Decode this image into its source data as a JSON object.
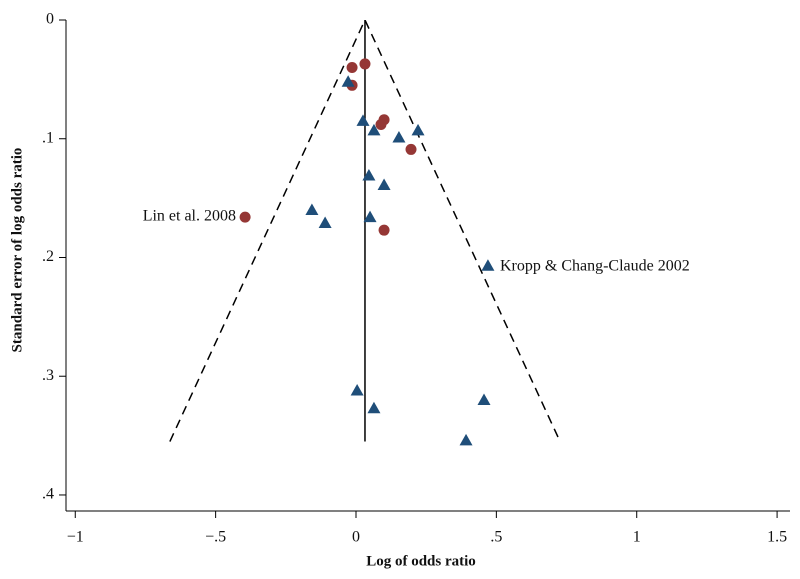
{
  "chart_data": {
    "type": "scatter",
    "xlabel": "Log of odds ratio",
    "ylabel": "Standard error of log odds ratio",
    "xlim": [
      -1.033,
      1.546
    ],
    "ylim": [
      0,
      0.4135
    ],
    "y_inverted": true,
    "xticks": [
      {
        "value": -1,
        "label": "−1"
      },
      {
        "value": -0.5,
        "label": "−.5"
      },
      0,
      {
        "value": 0.5,
        "label": ".5"
      },
      1,
      {
        "value": 1.5,
        "label": "1.5"
      }
    ],
    "yticks": [
      0,
      {
        "value": 0.1,
        "label": ".1"
      },
      {
        "value": 0.2,
        "label": ".2"
      },
      {
        "value": 0.3,
        "label": ".3"
      },
      {
        "value": 0.4,
        "label": ".4"
      }
    ],
    "series": [
      {
        "marker": "circle",
        "color": "#953735",
        "x": [
          -0.014,
          0.032,
          -0.014,
          0.1,
          0.089,
          0.196,
          -0.395,
          0.1
        ],
        "values": [
          0.04,
          0.037,
          0.055,
          0.084,
          0.088,
          0.109,
          0.166,
          0.177
        ]
      },
      {
        "marker": "triangle",
        "color": "#1f4e79",
        "x": [
          -0.028,
          0.025,
          0.064,
          0.221,
          0.153,
          0.046,
          0.1,
          -0.157,
          -0.11,
          0.05,
          0.47,
          0.004,
          0.064,
          0.456,
          0.392
        ],
        "values": [
          0.052,
          0.085,
          0.093,
          0.093,
          0.099,
          0.131,
          0.139,
          0.16,
          0.171,
          0.166,
          0.207,
          0.312,
          0.327,
          0.32,
          0.354
        ]
      }
    ],
    "reference_line": {
      "x": [
        0.032,
        0.032
      ],
      "values": [
        0,
        0.355
      ]
    },
    "funnel": {
      "x": [
        -0.663,
        0.032,
        0.727
      ],
      "values": [
        0.355,
        0,
        0.355
      ]
    },
    "annotations": [
      "Lin et al. 2008",
      "Kropp & Chang-Claude 2002"
    ]
  }
}
